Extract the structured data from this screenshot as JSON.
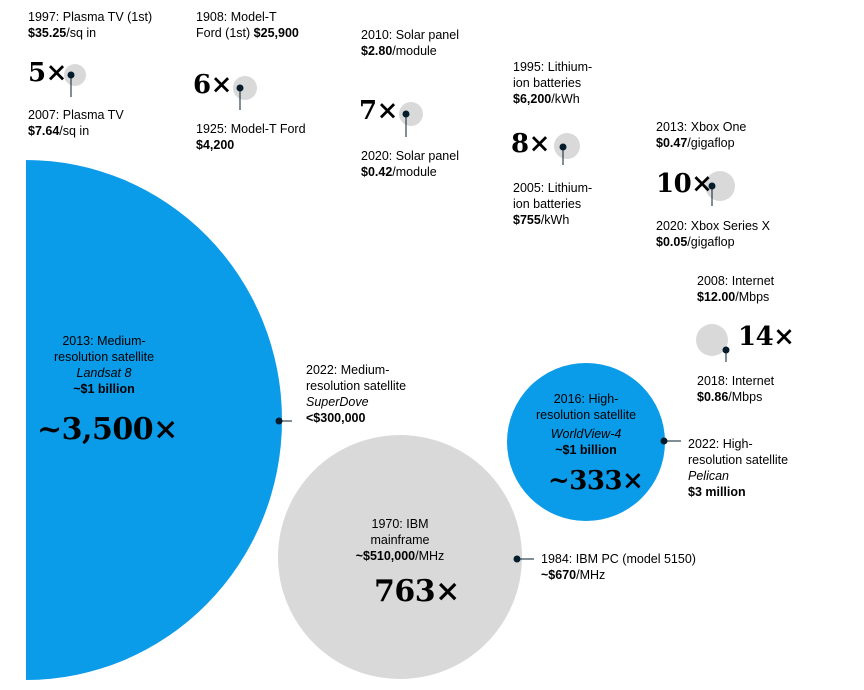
{
  "colors": {
    "blue": "#0a9be9",
    "gray": "#d9d9d9",
    "dot": "#051c2c",
    "text": "#000000"
  },
  "comparisons": [
    {
      "id": "plasma",
      "multiple": "5×",
      "before": {
        "lines": [
          "1997: Plasma TV (1st)"
        ],
        "price": "$35.25",
        "unit": "/sq in"
      },
      "after": {
        "lines": [
          "2007: Plasma TV"
        ],
        "price": "$7.64",
        "unit": "/sq in"
      }
    },
    {
      "id": "modelt",
      "multiple": "6×",
      "before": {
        "lines": [
          "1908: Model-T",
          "Ford (1st)"
        ],
        "price": "$25,900",
        "unit": ""
      },
      "after": {
        "lines": [
          "1925: Model-T Ford"
        ],
        "price": "$4,200",
        "unit": ""
      }
    },
    {
      "id": "solar",
      "multiple": "7×",
      "before": {
        "lines": [
          "2010: Solar panel"
        ],
        "price": "$2.80",
        "unit": "/module"
      },
      "after": {
        "lines": [
          "2020: Solar panel"
        ],
        "price": "$0.42",
        "unit": "/module"
      }
    },
    {
      "id": "lithium",
      "multiple": "8×",
      "before": {
        "lines": [
          "1995: Lithium-",
          "ion batteries"
        ],
        "price": "$6,200",
        "unit": "/kWh"
      },
      "after": {
        "lines": [
          "2005: Lithium-",
          "ion batteries"
        ],
        "price": "$755",
        "unit": "/kWh"
      }
    },
    {
      "id": "xbox",
      "multiple": "10×",
      "before": {
        "lines": [
          "2013: Xbox One"
        ],
        "price": "$0.47",
        "unit": "/gigaflop"
      },
      "after": {
        "lines": [
          "2020: Xbox Series X"
        ],
        "price": "$0.05",
        "unit": "/gigaflop"
      }
    },
    {
      "id": "internet",
      "multiple": "14×",
      "before": {
        "lines": [
          "2008: Internet"
        ],
        "price": "$12.00",
        "unit": "/Mbps"
      },
      "after": {
        "lines": [
          "2018: Internet"
        ],
        "price": "$0.86",
        "unit": "/Mbps"
      }
    },
    {
      "id": "medsat",
      "multiple": "~3,500×",
      "before": {
        "lines": [
          "2013: Medium-",
          "resolution satellite"
        ],
        "italic": "Landsat 8",
        "price": "~$1 billion",
        "unit": ""
      },
      "after": {
        "lines": [
          "2022: Medium-",
          "resolution satellite"
        ],
        "italic": "SuperDove",
        "price": "<$300,000",
        "unit": ""
      }
    },
    {
      "id": "ibm",
      "multiple": "763×",
      "before": {
        "lines": [
          "1970: IBM",
          "mainframe"
        ],
        "price": "~$510,000",
        "unit": "/MHz"
      },
      "after": {
        "lines": [
          "1984: IBM PC (model 5150)"
        ],
        "price": "~$670",
        "unit": "/MHz"
      }
    },
    {
      "id": "hisat",
      "multiple": "~333×",
      "before": {
        "lines": [
          "2016: High-",
          "resolution satellite"
        ],
        "italic": "WorldView-4",
        "price": "~$1 billion",
        "unit": ""
      },
      "after": {
        "lines": [
          "2022: High-",
          "resolution satellite"
        ],
        "italic": "Pelican",
        "price": "$3 million",
        "unit": ""
      }
    }
  ]
}
